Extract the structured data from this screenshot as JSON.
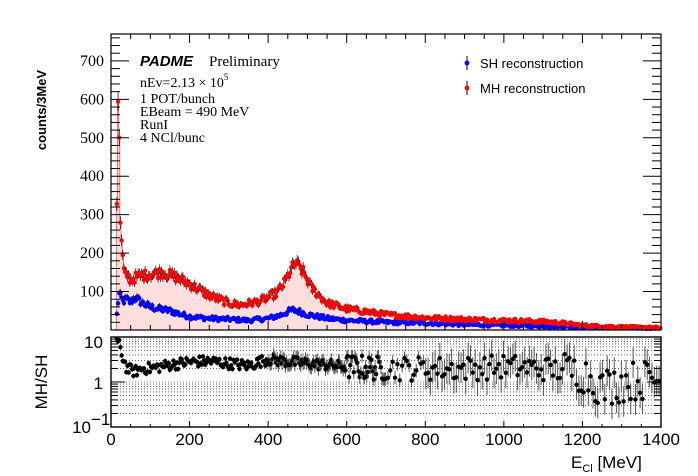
{
  "chart_data": [
    {
      "type": "scatter",
      "panel": "main",
      "title": "",
      "xlabel": "E_Cl [MeV]",
      "ylabel": "counts/3MeV",
      "xlim": [
        0,
        1400
      ],
      "ylim": [
        0,
        770
      ],
      "x_ticks": [
        0,
        200,
        400,
        600,
        800,
        1000,
        1200,
        1400
      ],
      "y_ticks": [
        100,
        200,
        300,
        400,
        500,
        600,
        700
      ],
      "y_tick_labels": [
        "100",
        "200",
        "300",
        "400",
        "500",
        "600",
        "700"
      ],
      "grid": false,
      "legend_position": "top-right",
      "annotations": {
        "experiment": "PADME",
        "status": "Preliminary",
        "nev_prefix": "nEv=2.13 ",
        "nev_times": "× 10",
        "nev_exp": "5",
        "lines": [
          "1 POT/bunch",
          "EBeam = 490 MeV",
          "RunI",
          "4 NCl/bunc"
        ]
      },
      "series": [
        {
          "name": "SH reconstruction",
          "color": "#0000ff",
          "keypoints_x": [
            15,
            20,
            25,
            30,
            40,
            50,
            60,
            80,
            100,
            120,
            150,
            180,
            200,
            250,
            300,
            350,
            400,
            430,
            460,
            480,
            500,
            550,
            600,
            700,
            800,
            900,
            1000,
            1100,
            1200,
            1300,
            1395
          ],
          "keypoints_y": [
            40,
            95,
            85,
            75,
            80,
            72,
            85,
            70,
            60,
            55,
            50,
            40,
            35,
            30,
            28,
            25,
            30,
            38,
            52,
            48,
            40,
            30,
            25,
            20,
            18,
            14,
            12,
            10,
            8,
            6,
            5
          ]
        },
        {
          "name": "MH reconstruction",
          "color": "#ff0000",
          "fill_color": "#ffdede",
          "keypoints_x": [
            15,
            18,
            21,
            24,
            27,
            30,
            33,
            36,
            40,
            50,
            70,
            100,
            130,
            160,
            200,
            250,
            300,
            330,
            380,
            420,
            440,
            460,
            470,
            490,
            510,
            550,
            600,
            700,
            800,
            900,
            1000,
            1100,
            1150,
            1200,
            1300,
            1395
          ],
          "keypoints_y": [
            340,
            600,
            490,
            280,
            225,
            190,
            155,
            140,
            145,
            130,
            140,
            145,
            150,
            140,
            120,
            90,
            70,
            65,
            75,
            95,
            120,
            160,
            175,
            150,
            110,
            70,
            55,
            40,
            32,
            28,
            25,
            22,
            18,
            12,
            8,
            6
          ]
        }
      ]
    },
    {
      "type": "scatter",
      "panel": "ratio",
      "xlabel": "E_Cl [MeV]",
      "ylabel": "MH/SH",
      "xlim": [
        0,
        1400
      ],
      "ylim": [
        0.1,
        10
      ],
      "yscale": "log",
      "y_ticks": [
        0.1,
        1,
        10
      ],
      "y_tick_labels": [
        "10^-1",
        "1",
        "10"
      ],
      "grid": true,
      "series": [
        {
          "name": "MH/SH",
          "color": "#000000",
          "keypoints_x": [
            15,
            20,
            25,
            30,
            40,
            60,
            80,
            100,
            150,
            200,
            250,
            300,
            350,
            400,
            450,
            500,
            550,
            600,
            700,
            800,
            900,
            1000,
            1100,
            1200,
            1250,
            1300,
            1395
          ],
          "keypoints_y": [
            8.5,
            7,
            4.5,
            3.5,
            2,
            1.7,
            2.0,
            2.0,
            2.4,
            2.8,
            2.9,
            2.6,
            2.3,
            3.2,
            2.8,
            2.6,
            2.4,
            2.2,
            2.0,
            2.0,
            2.0,
            2.2,
            2.0,
            1.6,
            0.7,
            1.0,
            1.2
          ]
        }
      ]
    }
  ],
  "labels": {
    "ylabel_main": "counts/3MeV",
    "ylabel_ratio": "MH/SH",
    "xlabel_main": "E",
    "xlabel_sub": "Cl",
    "xlabel_unit": " [MeV]",
    "ratio_tick_10": "10",
    "ratio_tick_1": "1",
    "ratio_tick_01_base": "10",
    "ratio_tick_01_exp": "−1",
    "x_tick_labels": [
      "0",
      "200",
      "400",
      "600",
      "800",
      "1000",
      "1200",
      "1400"
    ]
  }
}
